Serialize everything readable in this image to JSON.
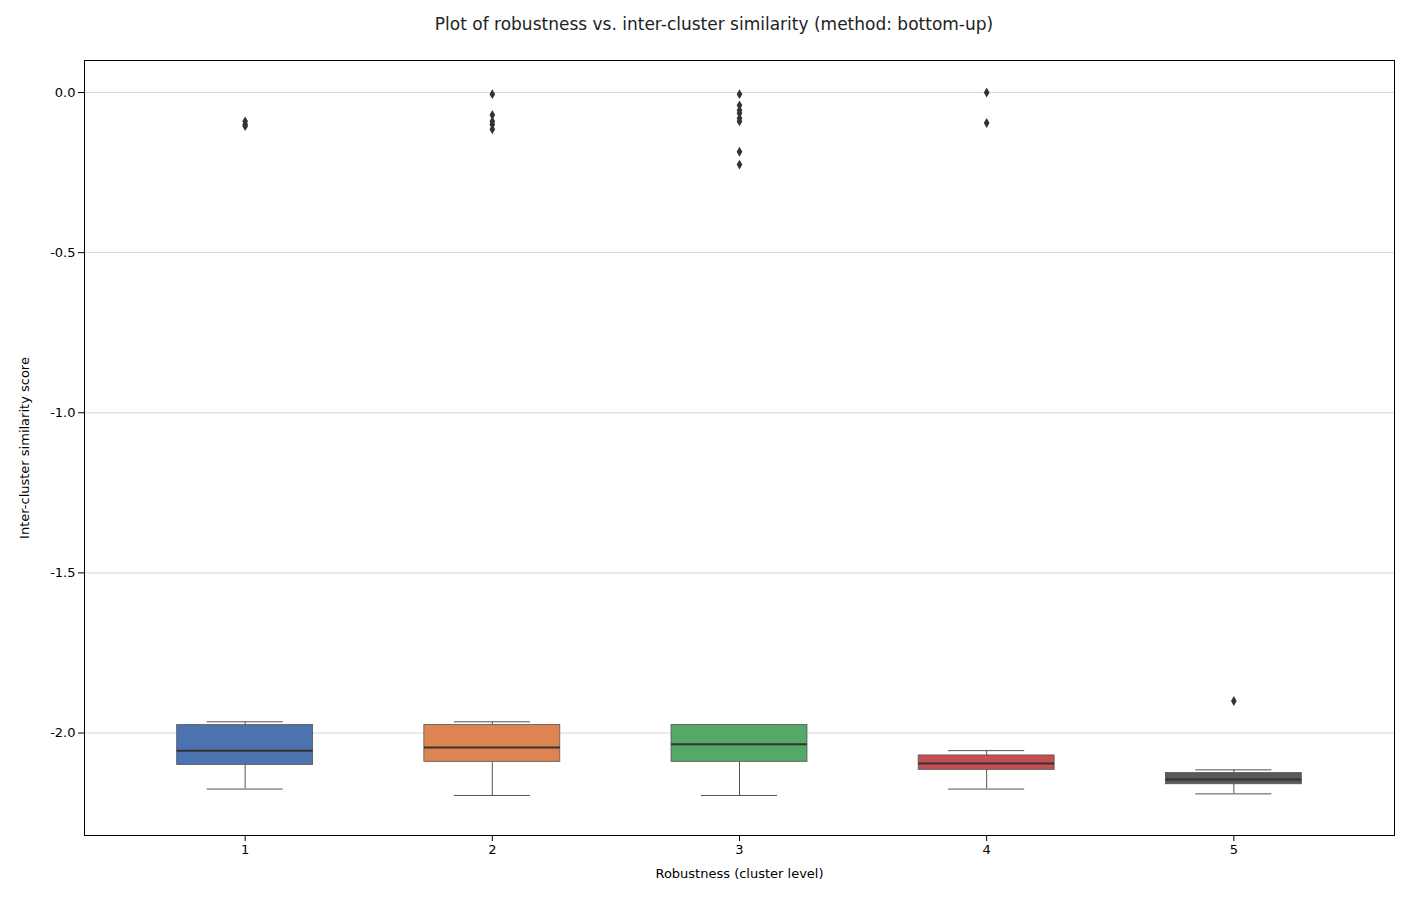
{
  "chart_data": {
    "type": "box",
    "title": "Plot of robustness vs. inter-cluster similarity (method: bottom-up)",
    "xlabel": "Robustness (cluster level)",
    "ylabel": "Inter-cluster similarity score",
    "x": [
      1,
      2,
      3,
      4,
      5
    ],
    "xlim": [
      0.35,
      5.65
    ],
    "xticks": [
      1,
      2,
      3,
      4,
      5
    ],
    "ylim": [
      -2.32,
      0.1
    ],
    "yticks": [
      {
        "value": 0.0,
        "label": "0.0"
      },
      -0.5,
      {
        "value": -1.0,
        "label": "-1.0"
      },
      -1.5,
      {
        "value": -2.0,
        "label": "-2.0"
      }
    ],
    "grid": "y",
    "colors": [
      "#4c72b0",
      "#dd8452",
      "#55a868",
      "#c44e52",
      "#595959"
    ],
    "whisker_low": [
      -2.175,
      -2.195,
      -2.195,
      -2.175,
      -2.19
    ],
    "q1": [
      -2.1,
      -2.09,
      -2.09,
      -2.115,
      -2.16
    ],
    "median": [
      -2.055,
      -2.045,
      -2.035,
      -2.095,
      -2.145
    ],
    "q3": [
      -1.975,
      -1.975,
      -1.975,
      -2.07,
      -2.125
    ],
    "whisker_high": [
      -1.965,
      -1.965,
      -1.975,
      -2.055,
      -2.115
    ],
    "fliers": [
      [
        -0.09,
        -0.1,
        -0.105
      ],
      [
        -0.005,
        -0.07,
        -0.09,
        -0.1,
        -0.115
      ],
      [
        -0.005,
        -0.04,
        -0.055,
        -0.065,
        -0.08,
        -0.09,
        -0.185,
        -0.225
      ],
      [
        0.0,
        -0.095
      ],
      [
        -1.9
      ]
    ]
  }
}
